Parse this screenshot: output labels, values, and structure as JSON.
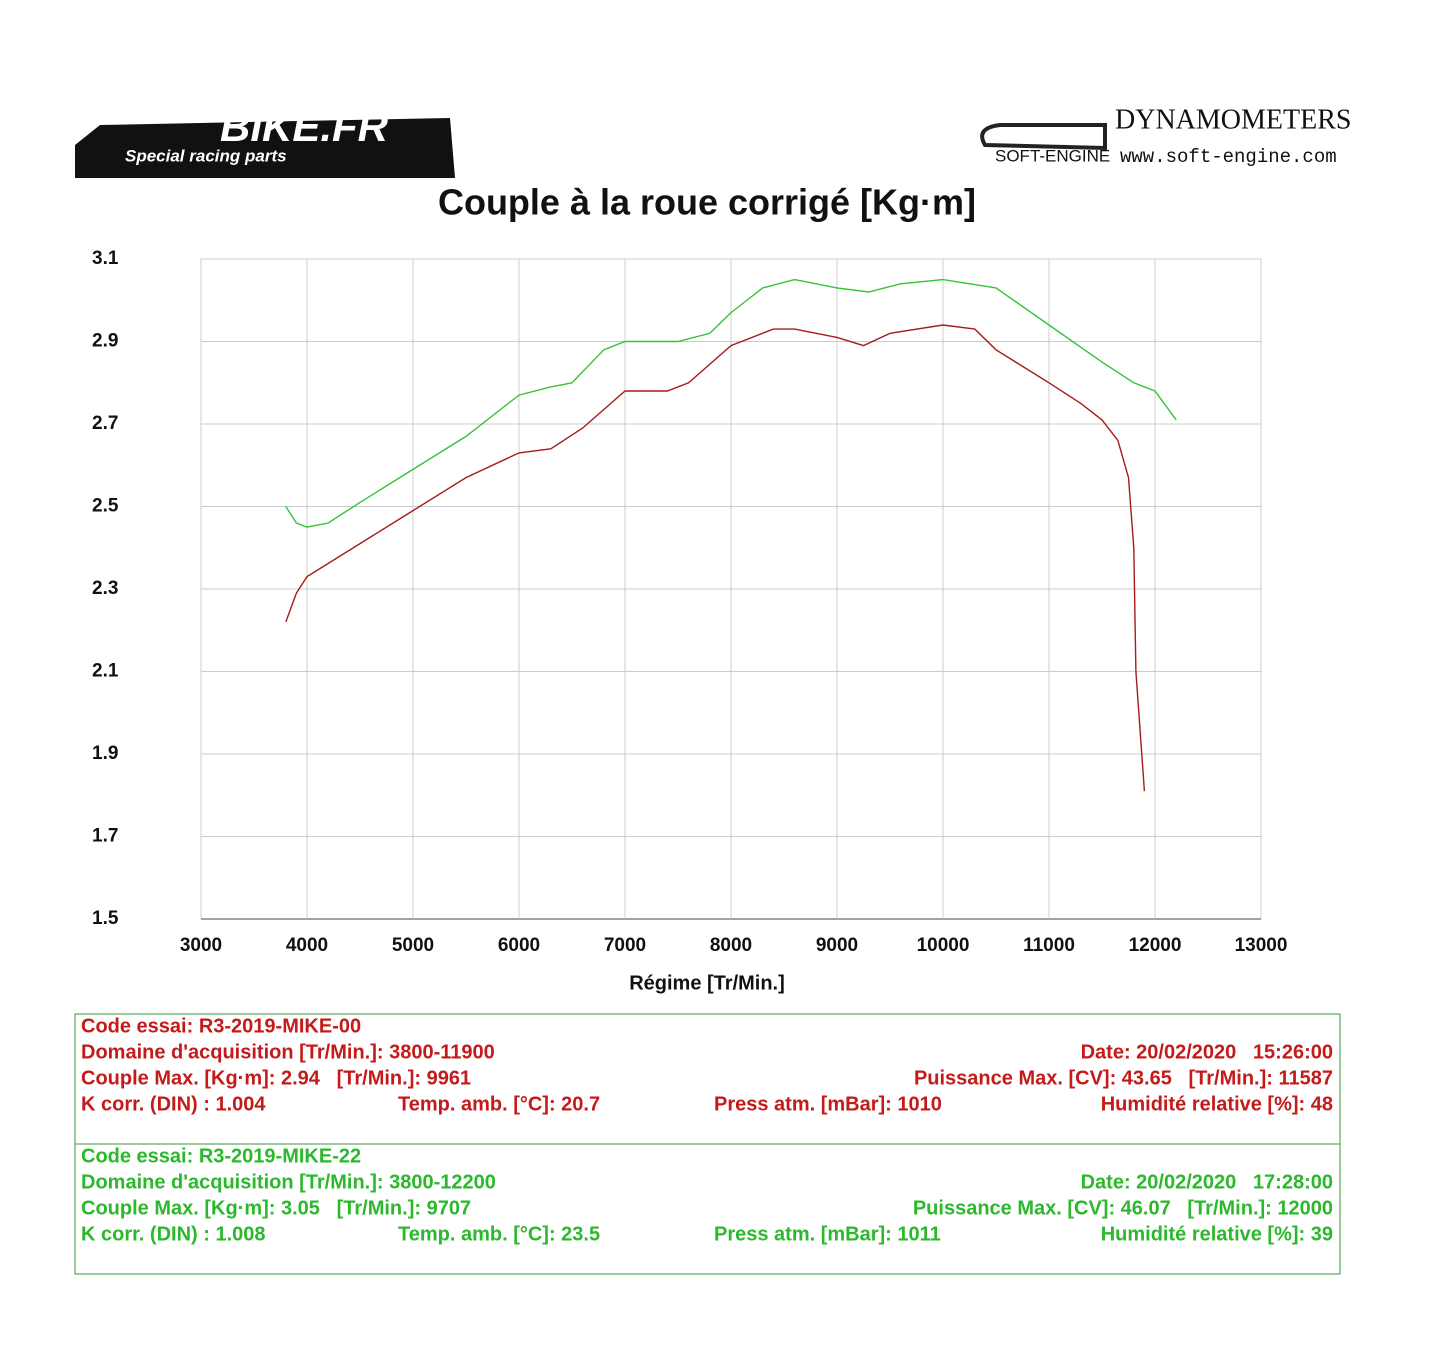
{
  "header": {
    "brand": "BIKE.FR",
    "tagline": "Special racing parts",
    "maker": "DYNAMOMETERS",
    "maker_logo": "SOFT-ENGINE",
    "maker_url": "www.soft-engine.com"
  },
  "chart_data": {
    "type": "line",
    "title": "Couple à la roue corrigé [Kg·m]",
    "x_label": "Régime [Tr/Min.]",
    "xlim": [
      3000,
      13000
    ],
    "ylim": [
      1.5,
      3.1
    ],
    "xticks": [
      3000,
      4000,
      5000,
      6000,
      7000,
      8000,
      9000,
      10000,
      11000,
      12000,
      13000
    ],
    "yticks": [
      1.5,
      1.7,
      1.9,
      2.1,
      2.3,
      2.5,
      2.7,
      2.9,
      3.1
    ],
    "grid": true,
    "series": [
      {
        "color": "#a61c1c",
        "x": [
          3800,
          3900,
          4000,
          4500,
          5000,
          5500,
          6000,
          6300,
          6600,
          7000,
          7400,
          7600,
          8000,
          8400,
          8600,
          9000,
          9250,
          9500,
          10000,
          10300,
          10500,
          11000,
          11300,
          11500,
          11650,
          11750,
          11800,
          11820,
          11900
        ],
        "values": [
          2.22,
          2.29,
          2.33,
          2.41,
          2.49,
          2.57,
          2.63,
          2.64,
          2.69,
          2.78,
          2.78,
          2.8,
          2.89,
          2.93,
          2.93,
          2.91,
          2.89,
          2.92,
          2.94,
          2.93,
          2.88,
          2.8,
          2.75,
          2.71,
          2.66,
          2.57,
          2.4,
          2.1,
          1.81
        ]
      },
      {
        "color": "#35c435",
        "x": [
          3800,
          3900,
          4000,
          4200,
          4500,
          5000,
          5500,
          6000,
          6300,
          6500,
          6800,
          7000,
          7500,
          7800,
          8000,
          8300,
          8600,
          9000,
          9300,
          9600,
          10000,
          10500,
          11000,
          11500,
          11800,
          12000,
          12200
        ],
        "values": [
          2.5,
          2.46,
          2.45,
          2.46,
          2.51,
          2.59,
          2.67,
          2.77,
          2.79,
          2.8,
          2.88,
          2.9,
          2.9,
          2.92,
          2.97,
          3.03,
          3.05,
          3.03,
          3.02,
          3.04,
          3.05,
          3.03,
          2.94,
          2.85,
          2.8,
          2.78,
          2.71
        ]
      }
    ]
  },
  "tests": [
    {
      "color": "#c41a1a",
      "code": "Code essai: R3-2019-MIKE-00",
      "domain": "Domaine d'acquisition [Tr/Min.]: 3800-11900",
      "date": "Date: 20/02/2020   15:26:00",
      "couple_max": "Couple Max. [Kg·m]: 2.94   [Tr/Min.]: 9961",
      "puissance_max": "Puissance Max. [CV]: 43.65   [Tr/Min.]: 11587",
      "k_corr": "K corr. (DIN) : 1.004",
      "temp": "Temp. amb. [°C]: 20.7",
      "press": "Press atm. [mBar]: 1010",
      "humidity": "Humidité relative [%]: 48"
    },
    {
      "color": "#2cb82c",
      "code": "Code essai: R3-2019-MIKE-22",
      "domain": "Domaine d'acquisition [Tr/Min.]: 3800-12200",
      "date": "Date: 20/02/2020   17:28:00",
      "couple_max": "Couple Max. [Kg·m]: 3.05   [Tr/Min.]: 9707",
      "puissance_max": "Puissance Max. [CV]: 46.07   [Tr/Min.]: 12000",
      "k_corr": "K corr. (DIN) : 1.008",
      "temp": "Temp. amb. [°C]: 23.5",
      "press": "Press atm. [mBar]: 1011",
      "humidity": "Humidité relative [%]: 39"
    }
  ]
}
